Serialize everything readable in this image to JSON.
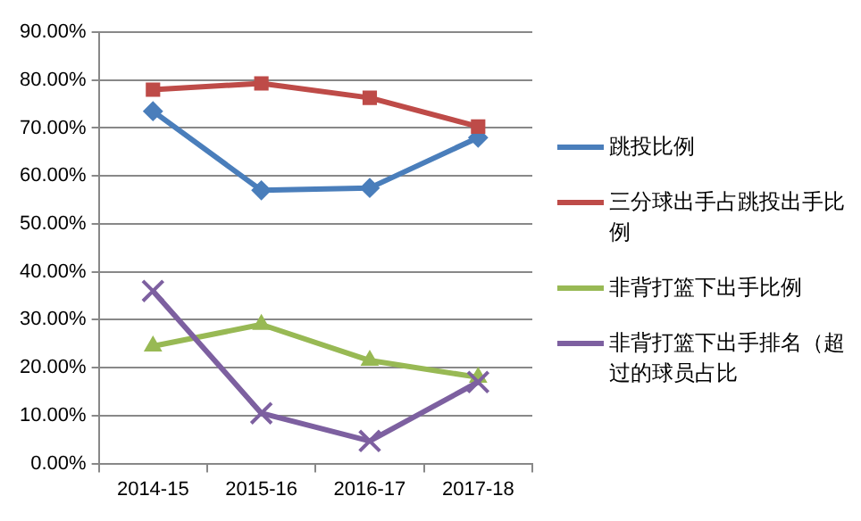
{
  "chart_data": {
    "type": "line",
    "categories": [
      "2014-15",
      "2015-16",
      "2016-17",
      "2017-18"
    ],
    "series": [
      {
        "name": "跳投比例",
        "color": "#4a7ebb",
        "marker": "diamond",
        "values": [
          73.5,
          57,
          57.5,
          68
        ]
      },
      {
        "name": "三分球出手占跳投出手比例",
        "color": "#be4b48",
        "marker": "square",
        "values": [
          78,
          79.3,
          76.3,
          70.3
        ]
      },
      {
        "name": "非背打篮下出手比例",
        "color": "#98b954",
        "marker": "triangle",
        "values": [
          24.5,
          29,
          21.5,
          18
        ]
      },
      {
        "name": "非背打篮下出手排名（超过的球员占比",
        "color": "#7d60a0",
        "marker": "cross",
        "values": [
          36,
          10.5,
          4.7,
          17
        ]
      }
    ],
    "ylim": [
      0,
      90
    ],
    "yticks": [
      {
        "value": 0,
        "label": "0.00%"
      },
      {
        "value": 10,
        "label": "10.00%"
      },
      {
        "value": 20,
        "label": "20.00%"
      },
      {
        "value": 30,
        "label": "30.00%"
      },
      {
        "value": 40,
        "label": "40.00%"
      },
      {
        "value": 50,
        "label": "50.00%"
      },
      {
        "value": 60,
        "label": "60.00%"
      },
      {
        "value": 70,
        "label": "70.00%"
      },
      {
        "value": 80,
        "label": "80.00%"
      },
      {
        "value": 90,
        "label": "90.00%"
      }
    ],
    "grid": "y",
    "legend": "right",
    "line_style": "solid"
  }
}
